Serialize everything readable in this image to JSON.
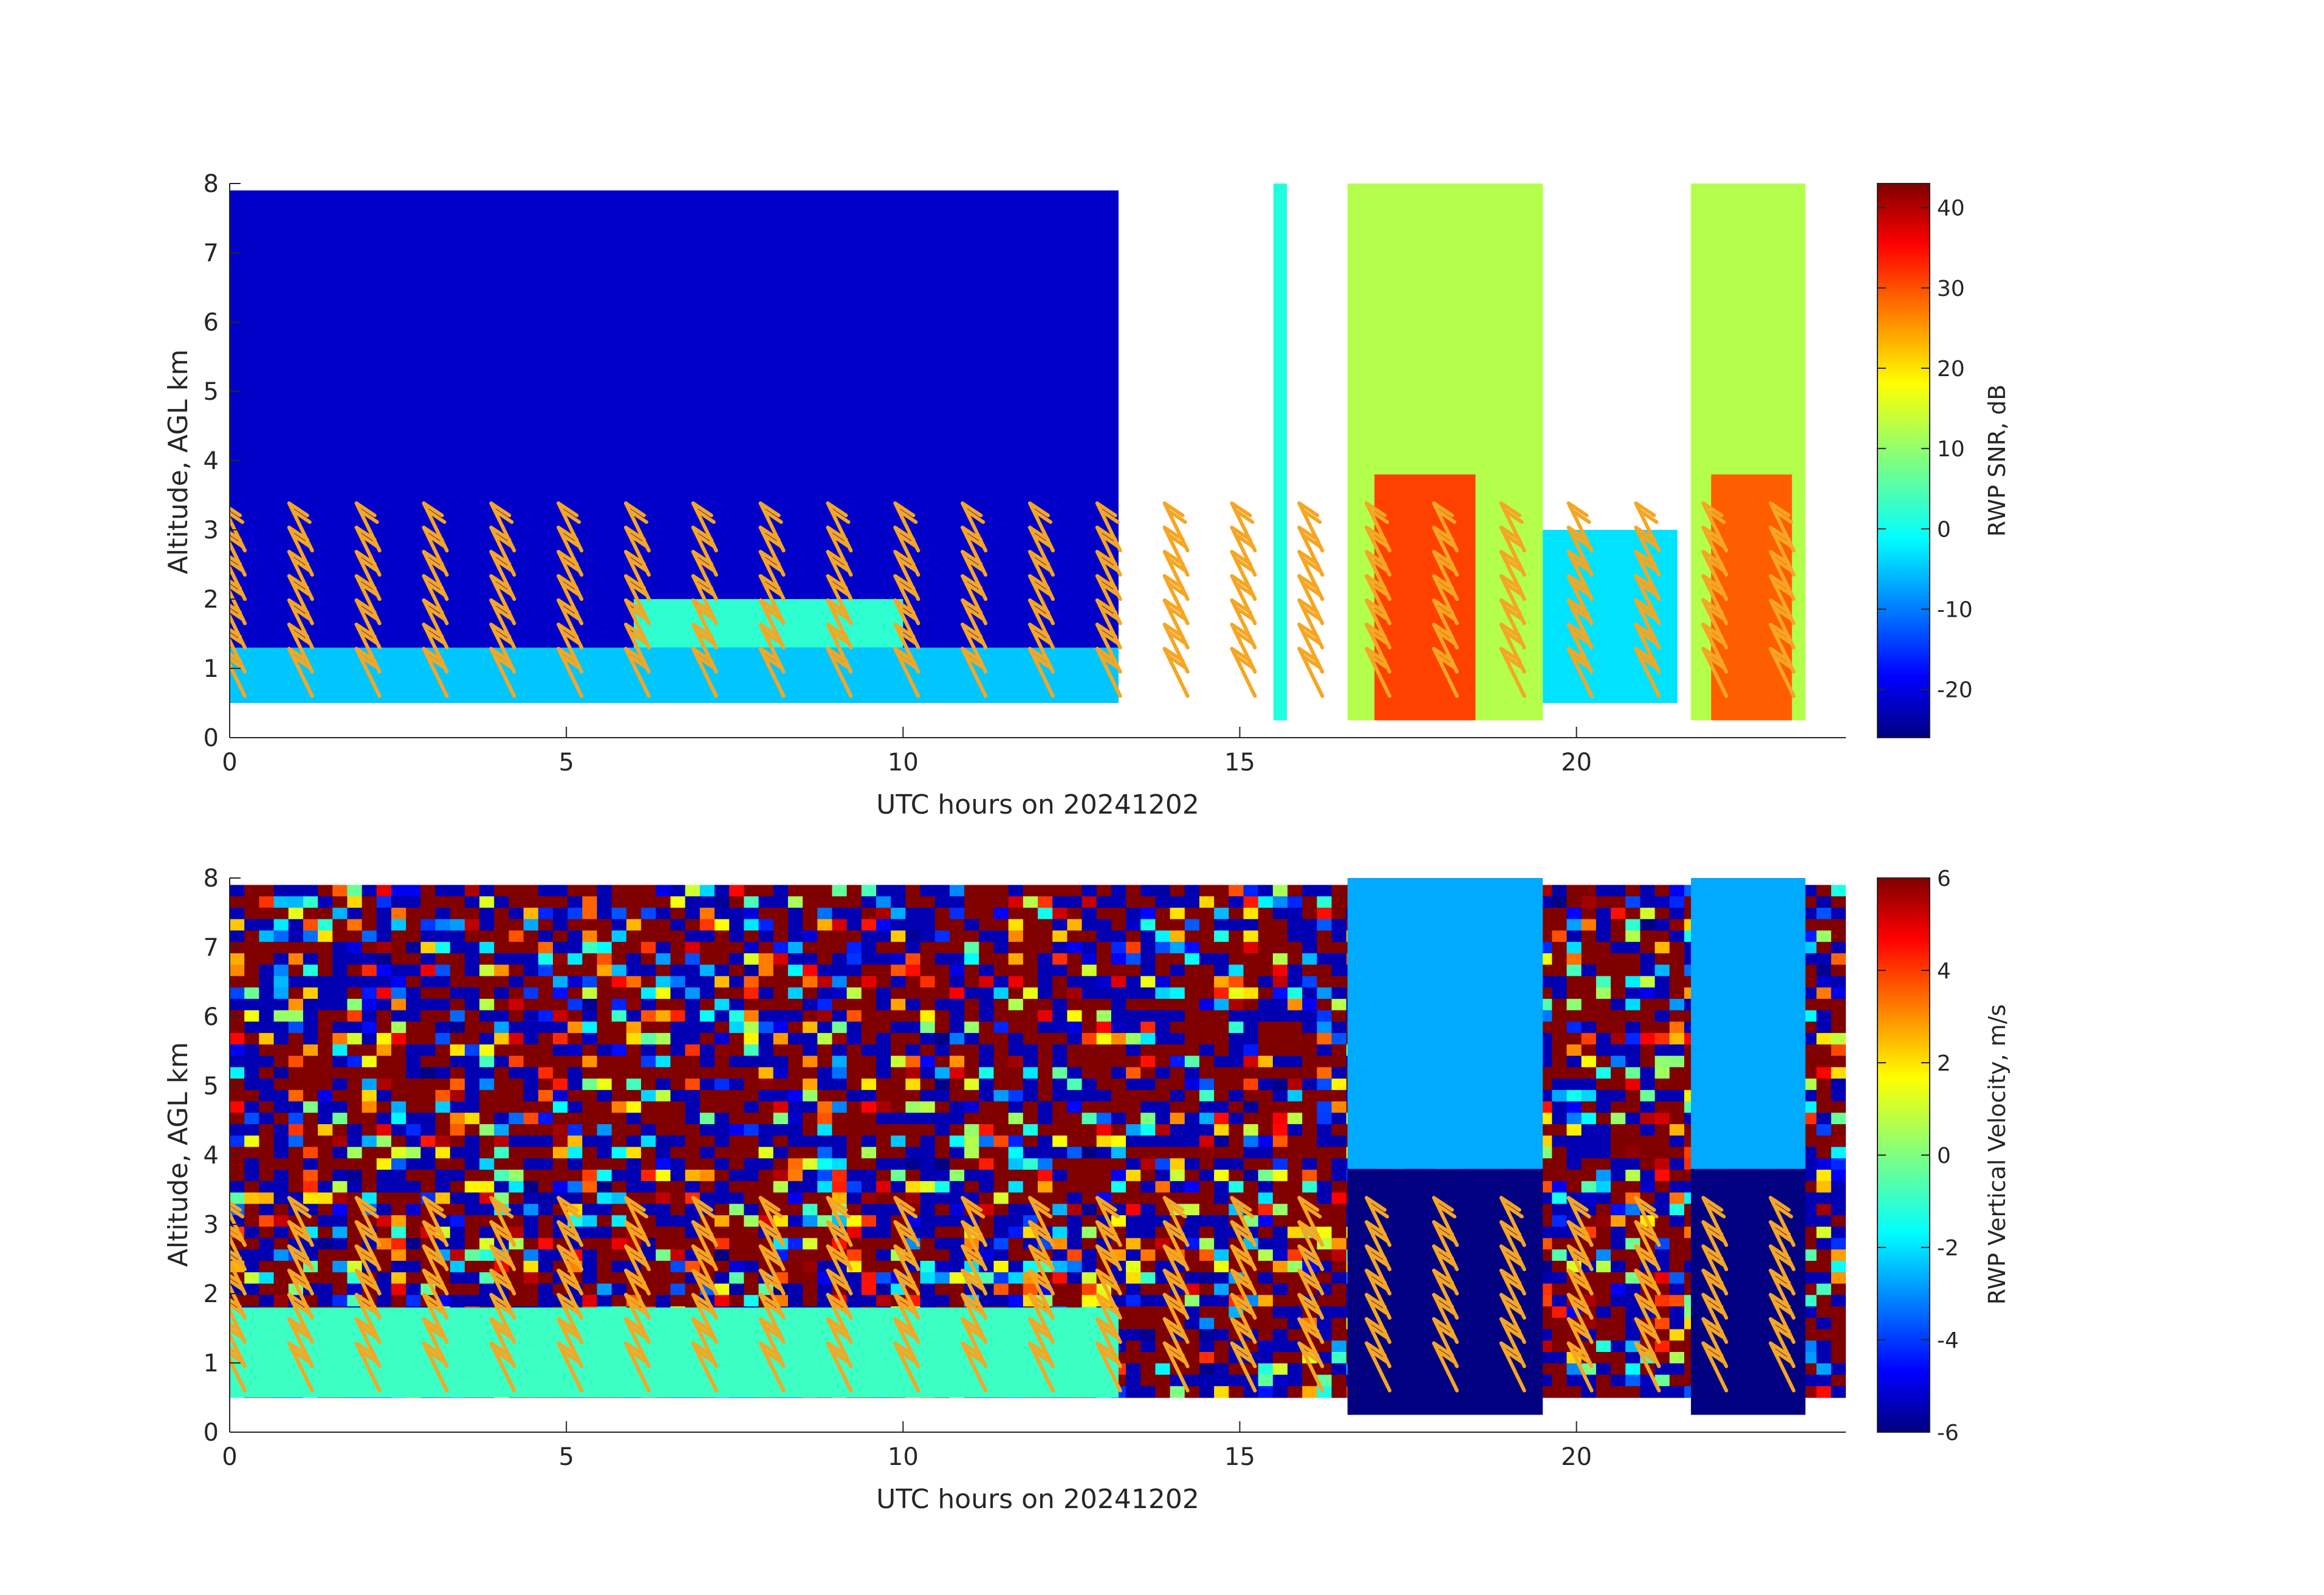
{
  "chart_data": [
    {
      "type": "heatmap",
      "xlabel": "UTC hours on 20241202",
      "ylabel": "Altitude, AGL km",
      "xlim": [
        0,
        24
      ],
      "ylim": [
        0,
        8
      ],
      "xticks": [
        "0",
        "5",
        "10",
        "15",
        "20"
      ],
      "xtick_values": [
        0,
        5,
        10,
        15,
        20
      ],
      "yticks": [
        "0",
        "1",
        "2",
        "3",
        "4",
        "5",
        "6",
        "7",
        "8"
      ],
      "ytick_values": [
        0,
        1,
        2,
        3,
        4,
        5,
        6,
        7,
        8
      ],
      "colorbar": {
        "label": "RWP SNR, dB",
        "range": [
          -26,
          43
        ],
        "ticks": [
          "-20",
          "-10",
          "0",
          "10",
          "20",
          "30",
          "40"
        ],
        "tick_values": [
          -20,
          -10,
          0,
          10,
          20,
          30,
          40
        ],
        "colormap": "jet"
      },
      "overlay": {
        "type": "wind barbs",
        "color": "#f5a623"
      },
      "regions": [
        {
          "x": [
            0,
            13.2
          ],
          "y": [
            0.5,
            7.9
          ],
          "value": -21
        },
        {
          "x": [
            0,
            13.2
          ],
          "y": [
            0.5,
            1.3
          ],
          "value": -4
        },
        {
          "x": [
            6,
            10
          ],
          "y": [
            1.3,
            2.0
          ],
          "value": 3
        },
        {
          "x": [
            15.5,
            15.7
          ],
          "y": [
            0.25,
            8.0
          ],
          "value": 2
        },
        {
          "x": [
            16.6,
            19.5
          ],
          "y": [
            0.25,
            8.0
          ],
          "value": 12
        },
        {
          "x": [
            17.0,
            18.5
          ],
          "y": [
            0.25,
            3.8
          ],
          "value": 30
        },
        {
          "x": [
            19.5,
            21.5
          ],
          "y": [
            0.5,
            3.0
          ],
          "value": -2
        },
        {
          "x": [
            21.7,
            23.4
          ],
          "y": [
            0.25,
            8.0
          ],
          "value": 12
        },
        {
          "x": [
            22.0,
            23.2
          ],
          "y": [
            0.25,
            3.8
          ],
          "value": 28
        }
      ]
    },
    {
      "type": "heatmap",
      "xlabel": "UTC hours on 20241202",
      "ylabel": "Altitude, AGL km",
      "xlim": [
        0,
        24
      ],
      "ylim": [
        0,
        8
      ],
      "xticks": [
        "0",
        "5",
        "10",
        "15",
        "20"
      ],
      "xtick_values": [
        0,
        5,
        10,
        15,
        20
      ],
      "yticks": [
        "0",
        "1",
        "2",
        "3",
        "4",
        "5",
        "6",
        "7",
        "8"
      ],
      "ytick_values": [
        0,
        1,
        2,
        3,
        4,
        5,
        6,
        7,
        8
      ],
      "colorbar": {
        "label": "RWP Vertical Velocity, m/s",
        "range": [
          -6,
          6
        ],
        "ticks": [
          "-6",
          "-4",
          "-2",
          "0",
          "2",
          "4",
          "6"
        ],
        "tick_values": [
          -6,
          -4,
          -2,
          0,
          2,
          4,
          6
        ],
        "colormap": "jet"
      },
      "overlay": {
        "type": "wind barbs",
        "color": "#f5a623"
      },
      "regions": [
        {
          "x": [
            0,
            24
          ],
          "y": [
            0.5,
            7.9
          ],
          "value": 0,
          "pattern": "noise"
        },
        {
          "x": [
            0,
            13.2
          ],
          "y": [
            0.5,
            1.8
          ],
          "value": -0.8
        },
        {
          "x": [
            16.6,
            19.5
          ],
          "y": [
            3.8,
            8.0
          ],
          "value": -2.5
        },
        {
          "x": [
            16.6,
            19.5
          ],
          "y": [
            0.25,
            3.8
          ],
          "value": -6
        },
        {
          "x": [
            21.7,
            23.4
          ],
          "y": [
            3.8,
            8.0
          ],
          "value": -2.5
        },
        {
          "x": [
            21.7,
            23.4
          ],
          "y": [
            0.25,
            3.8
          ],
          "value": -6
        }
      ]
    }
  ],
  "colors": {
    "overlay": "#f5a623",
    "axes": "#262626"
  }
}
